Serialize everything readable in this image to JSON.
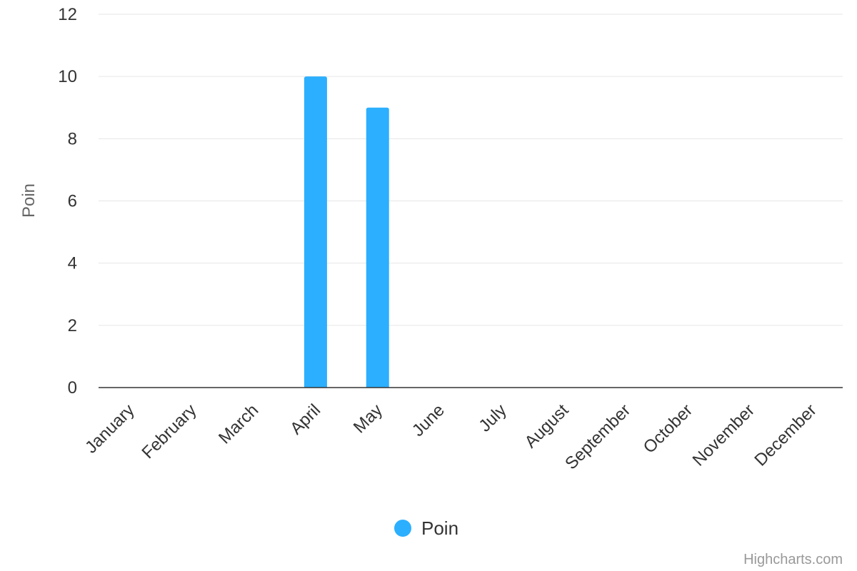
{
  "chart_data": {
    "type": "bar",
    "categories": [
      "January",
      "February",
      "March",
      "April",
      "May",
      "June",
      "July",
      "August",
      "September",
      "October",
      "November",
      "December"
    ],
    "series": [
      {
        "name": "Poin",
        "values": [
          0,
          0,
          0,
          10,
          9,
          0,
          0,
          0,
          0,
          0,
          0,
          0
        ],
        "color": "#2caffe"
      }
    ],
    "title": "",
    "xlabel": "",
    "ylabel": "Poin",
    "ylim": [
      0,
      12
    ],
    "yticks": [
      0,
      2,
      4,
      6,
      8,
      10,
      12
    ],
    "grid": true,
    "legend_position": "bottom-center",
    "credits": "Highcharts.com"
  }
}
